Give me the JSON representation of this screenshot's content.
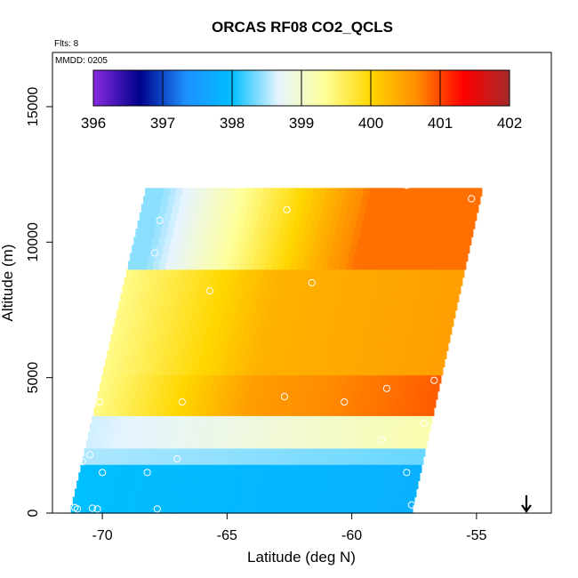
{
  "chart_data": {
    "type": "heatmap",
    "title": "ORCAS RF08 CO2_QCLS",
    "xlabel": "Latitude (deg N)",
    "ylabel": "Altitude (m)",
    "xlim": [
      -72,
      -52
    ],
    "ylim": [
      0,
      17000
    ],
    "xticks": [
      -70,
      -65,
      -60,
      -55
    ],
    "yticks": [
      0,
      5000,
      10000,
      15000
    ],
    "xtick_labels": [
      "-70",
      "-65",
      "-60",
      "-55"
    ],
    "ytick_labels": [
      "0",
      "5000",
      "10000",
      "15000"
    ],
    "flights_label": "Flts: 8",
    "date_label": "MMDD: 0205",
    "colorbar": {
      "min": 396,
      "max": 402,
      "ticks": [
        396,
        397,
        398,
        399,
        400,
        401,
        402
      ],
      "tick_labels": [
        "396",
        "397",
        "398",
        "399",
        "400",
        "401",
        "402"
      ],
      "colors": [
        "#8a2be2",
        "#00008b",
        "#1e90ff",
        "#00bfff",
        "#e6f4ff",
        "#ffff99",
        "#ffd700",
        "#ff8c00",
        "#ff0000",
        "#a52a2a"
      ]
    },
    "domain": {
      "lat_south_bottom": -71.3,
      "lat_north_bottom": -57.6,
      "lat_south_top": -68.3,
      "lat_north_top": -54.8,
      "alt_top": 11800
    },
    "profile_points": [
      {
        "lat": -71.1,
        "alt": 200
      },
      {
        "lat": -71.0,
        "alt": 150
      },
      {
        "lat": -70.4,
        "alt": 180
      },
      {
        "lat": -70.2,
        "alt": 150
      },
      {
        "lat": -70.8,
        "alt": 1900
      },
      {
        "lat": -70.5,
        "alt": 2150
      },
      {
        "lat": -70.0,
        "alt": 1500
      },
      {
        "lat": -71.4,
        "alt": 1400
      },
      {
        "lat": -67.8,
        "alt": 150
      },
      {
        "lat": -68.2,
        "alt": 1500
      },
      {
        "lat": -67.0,
        "alt": 2000
      },
      {
        "lat": -70.1,
        "alt": 4100
      },
      {
        "lat": -66.8,
        "alt": 4100
      },
      {
        "lat": -65.7,
        "alt": 8200
      },
      {
        "lat": -67.9,
        "alt": 9600
      },
      {
        "lat": -67.7,
        "alt": 10800
      },
      {
        "lat": -62.6,
        "alt": 11200
      },
      {
        "lat": -61.6,
        "alt": 8500
      },
      {
        "lat": -62.7,
        "alt": 4300
      },
      {
        "lat": -60.3,
        "alt": 4100
      },
      {
        "lat": -58.8,
        "alt": 2700
      },
      {
        "lat": -58.6,
        "alt": 4600
      },
      {
        "lat": -57.8,
        "alt": 1500
      },
      {
        "lat": -57.6,
        "alt": 300
      },
      {
        "lat": -57.8,
        "alt": 12100
      },
      {
        "lat": -56.7,
        "alt": 4900
      },
      {
        "lat": -57.1,
        "alt": 3300
      },
      {
        "lat": -55.2,
        "alt": 11600
      }
    ],
    "arrow_lat": -53.0
  }
}
